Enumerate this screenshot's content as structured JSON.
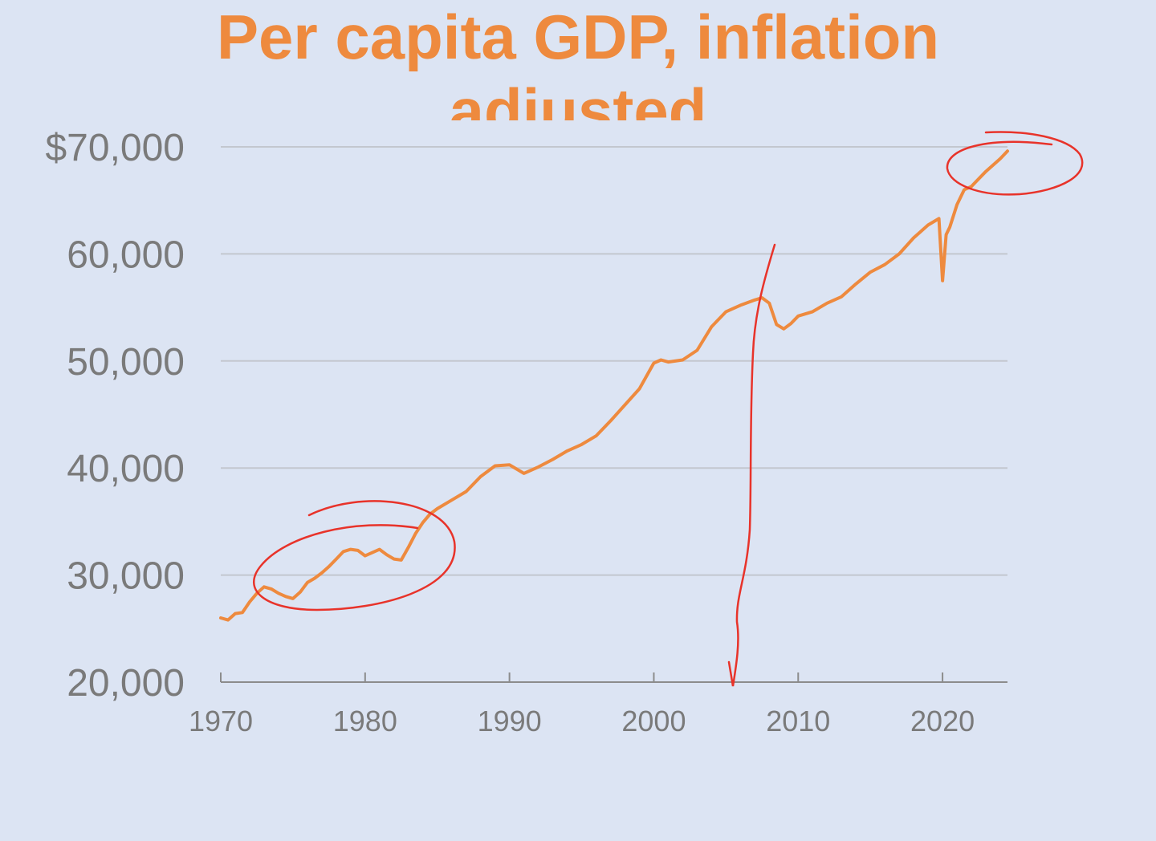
{
  "chart_data": {
    "type": "line",
    "title": "Per capita GDP, inflation adjusted",
    "title_lines": [
      "Per capita GDP, inflation",
      "adjusted"
    ],
    "xlabel": "",
    "ylabel": "",
    "xlim": [
      1970,
      2024.5
    ],
    "ylim": [
      20000,
      70000
    ],
    "x_ticks": [
      1970,
      1980,
      1990,
      2000,
      2010,
      2020
    ],
    "x_tick_labels": [
      "1970",
      "1980",
      "1990",
      "2000",
      "2010",
      "2020"
    ],
    "y_ticks": [
      20000,
      30000,
      40000,
      50000,
      60000,
      70000
    ],
    "y_tick_labels": [
      "20,000",
      "30,000",
      "40,000",
      "50,000",
      "60,000",
      "$70,000"
    ],
    "grid": "horizontal",
    "legend": "none",
    "colors": {
      "line": "#ee8a3e",
      "title": "#ee8a3e",
      "annotation": "#e8332a",
      "grid": "#c3c7cf",
      "axis": "#8c8c8c",
      "background": "#dce4f3"
    },
    "series": [
      {
        "x": [
          1970,
          1970.5,
          1971,
          1971.5,
          1972,
          1972.5,
          1973,
          1973.5,
          1974,
          1974.5,
          1975,
          1975.5,
          1976,
          1976.5,
          1977,
          1977.5,
          1978,
          1978.5,
          1979,
          1979.5,
          1980,
          1980.5,
          1981,
          1981.5,
          1982,
          1982.5,
          1983,
          1983.5,
          1984,
          1984.5,
          1985,
          1986,
          1987,
          1988,
          1989,
          1990,
          1991,
          1992,
          1993,
          1994,
          1995,
          1996,
          1997,
          1998,
          1999,
          2000,
          2000.5,
          2001,
          2002,
          2003,
          2004,
          2005,
          2006,
          2007,
          2007.5,
          2008,
          2008.5,
          2009,
          2009.5,
          2010,
          2011,
          2012,
          2013,
          2014,
          2015,
          2016,
          2017,
          2018,
          2019,
          2019.75,
          2020,
          2020.25,
          2020.5,
          2021,
          2021.5,
          2022,
          2022.5,
          2023,
          2023.5,
          2024,
          2024.5
        ],
        "values": [
          26000,
          25800,
          26400,
          26500,
          27500,
          28300,
          28900,
          28700,
          28300,
          28000,
          27800,
          28400,
          29300,
          29700,
          30200,
          30800,
          31500,
          32200,
          32400,
          32300,
          31800,
          32100,
          32400,
          31900,
          31500,
          31400,
          32600,
          33900,
          34900,
          35700,
          36200,
          37000,
          37800,
          39200,
          40200,
          40300,
          39500,
          40100,
          40800,
          41600,
          42200,
          43000,
          44400,
          45900,
          47400,
          49800,
          50100,
          49900,
          50100,
          51000,
          53200,
          54600,
          55200,
          55700,
          55900,
          55400,
          53400,
          53000,
          53500,
          54200,
          54600,
          55400,
          56000,
          57200,
          58300,
          59000,
          60000,
          61500,
          62700,
          63300,
          57500,
          61800,
          62500,
          64600,
          66000,
          66300,
          67000,
          67700,
          68300,
          68900,
          69600
        ]
      }
    ]
  }
}
